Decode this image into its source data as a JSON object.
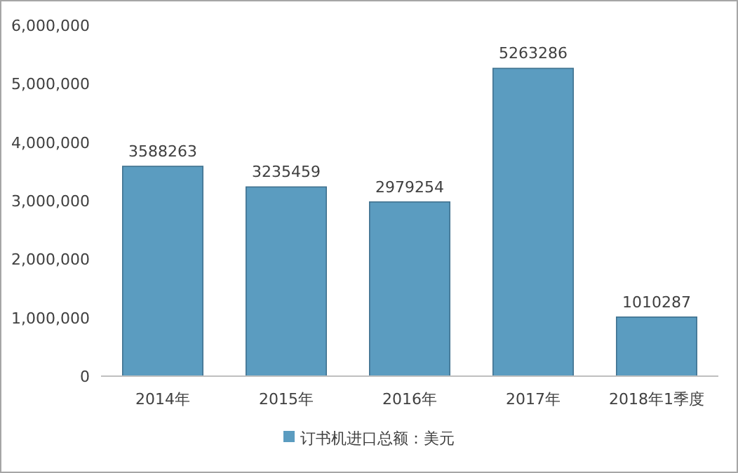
{
  "chart_data": {
    "type": "bar",
    "categories": [
      "2014年",
      "2015年",
      "2016年",
      "2017年",
      "2018年1季度"
    ],
    "series": [
      {
        "name": "订书机进口总额：美元",
        "color": "#5b9cc0",
        "values": [
          3588263,
          3235459,
          2979254,
          5263286,
          1010287
        ]
      }
    ],
    "ylim": [
      0,
      6000000
    ],
    "yticks": [
      0,
      {
        "value": 1000000,
        "label": "1,000,000"
      },
      {
        "value": 2000000,
        "label": "2,000,000"
      },
      {
        "value": 3000000,
        "label": "3,000,000"
      },
      {
        "value": 4000000,
        "label": "4,000,000"
      },
      {
        "value": 5000000,
        "label": "5,000,000"
      },
      {
        "value": 6000000,
        "label": "6,000,000"
      }
    ],
    "data_labels": true,
    "legend": "bottom"
  }
}
